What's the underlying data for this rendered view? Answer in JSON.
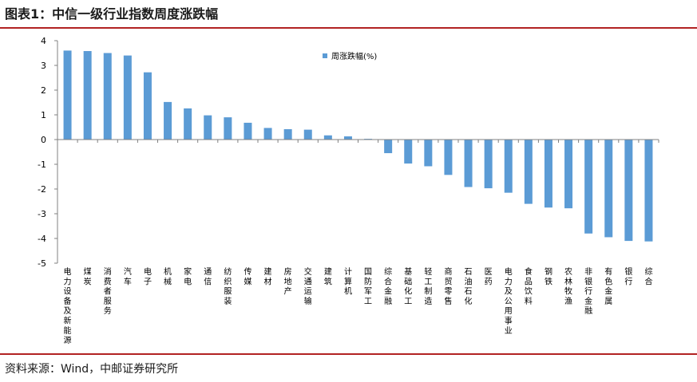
{
  "header": {
    "title": "图表1：中信一级行业指数周度涨跌幅"
  },
  "footer": {
    "source": "资料来源：Wind，中邮证券研究所"
  },
  "chart_data": {
    "type": "bar",
    "title": "",
    "xlabel": "",
    "ylabel": "",
    "ylim": [
      -5,
      4
    ],
    "yticks": [
      4,
      3,
      2,
      1,
      0,
      -1,
      -2,
      -3,
      -4,
      -5
    ],
    "grid": false,
    "legend_position": "top-center",
    "bar_color": "#5b9bd5",
    "categories": [
      "电力设备及新能源",
      "煤炭",
      "消费者服务",
      "汽车",
      "电子",
      "机械",
      "家电",
      "通信",
      "纺织服装",
      "传媒",
      "建材",
      "房地产",
      "交通运输",
      "建筑",
      "计算机",
      "国防军工",
      "综合金融",
      "基础化工",
      "轻工制造",
      "商贸零售",
      "石油石化",
      "医药",
      "电力及公用事业",
      "食品饮料",
      "钢铁",
      "农林牧渔",
      "非银行金融",
      "有色金属",
      "银行",
      "综合"
    ],
    "series": [
      {
        "name": "周涨跌幅(%)",
        "values": [
          3.6,
          3.58,
          3.5,
          3.4,
          2.72,
          1.52,
          1.26,
          0.98,
          0.9,
          0.68,
          0.47,
          0.42,
          0.4,
          0.17,
          0.13,
          0.03,
          -0.55,
          -0.97,
          -1.08,
          -1.43,
          -1.92,
          -1.97,
          -2.15,
          -2.6,
          -2.75,
          -2.78,
          -3.8,
          -3.95,
          -4.1,
          -4.12
        ]
      }
    ]
  }
}
